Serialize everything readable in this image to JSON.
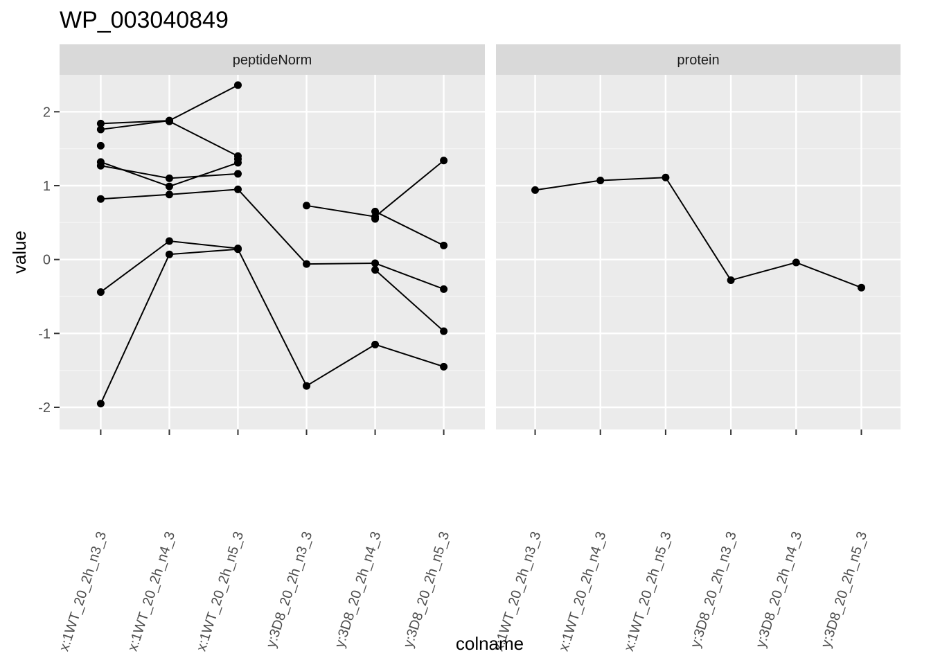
{
  "chart_data": {
    "type": "line",
    "title": "WP_003040849",
    "xlabel": "colname",
    "ylabel": "value",
    "ylim": [
      -2.3,
      2.5
    ],
    "yticks": [
      -2,
      -1,
      0,
      1,
      2
    ],
    "ytick_labels": [
      "-2",
      "-1",
      "0",
      "1",
      "2"
    ],
    "grid": true,
    "legend": "none",
    "categories": [
      "x:1WT_20_2h_n3_3",
      "x:1WT_20_2h_n4_3",
      "x:1WT_20_2h_n5_3",
      "y:3D8_20_2h_n3_3",
      "y:3D8_20_2h_n4_3",
      "y:3D8_20_2h_n5_3"
    ],
    "panels": [
      {
        "strip": "peptideNorm",
        "series": [
          {
            "values": [
              1.84,
              1.88,
              null,
              null,
              null,
              null
            ]
          },
          {
            "values": [
              1.76,
              1.88,
              2.36,
              null,
              null,
              null
            ]
          },
          {
            "values": [
              null,
              1.87,
              1.4,
              null,
              null,
              null
            ]
          },
          {
            "values": [
              1.54,
              null,
              null,
              null,
              null,
              null
            ]
          },
          {
            "values": [
              1.32,
              0.99,
              1.31,
              null,
              null,
              null
            ]
          },
          {
            "values": [
              1.27,
              1.1,
              1.16,
              null,
              null,
              null
            ]
          },
          {
            "values": [
              null,
              null,
              1.36,
              null,
              null,
              null
            ]
          },
          {
            "values": [
              null,
              null,
              null,
              0.73,
              0.58,
              1.34
            ]
          },
          {
            "values": [
              null,
              null,
              null,
              null,
              0.65,
              0.19
            ]
          },
          {
            "values": [
              null,
              null,
              null,
              null,
              0.55,
              null
            ]
          },
          {
            "values": [
              0.82,
              0.88,
              0.95,
              -0.06,
              -0.05,
              -0.4
            ]
          },
          {
            "values": [
              null,
              null,
              null,
              null,
              -0.14,
              -0.97
            ]
          },
          {
            "values": [
              -0.44,
              0.25,
              0.15,
              null,
              null,
              null
            ]
          },
          {
            "values": [
              -1.95,
              0.07,
              0.14,
              -1.71,
              -1.15,
              -1.45
            ]
          }
        ]
      },
      {
        "strip": "protein",
        "series": [
          {
            "values": [
              0.94,
              1.07,
              1.11,
              -0.28,
              -0.04,
              -0.38
            ]
          }
        ]
      }
    ]
  }
}
